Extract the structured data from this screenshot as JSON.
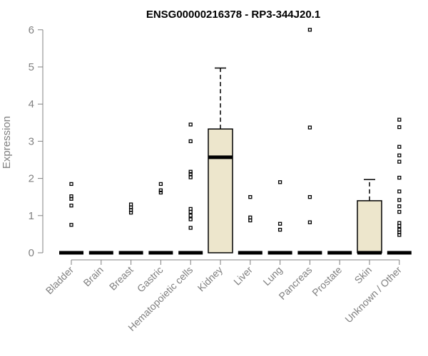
{
  "chart_data": {
    "type": "box",
    "title": "ENSG00000216378 - RP3-344J20.1",
    "ylabel": "Expression",
    "xlabel": "",
    "ylim": [
      0,
      6
    ],
    "yticks": [
      0,
      1,
      2,
      3,
      4,
      5,
      6
    ],
    "box_fill": "#ede6cc",
    "outline_color": "#000000",
    "categories": [
      "Bladder",
      "Brain",
      "Breast",
      "Gastric",
      "Hematopoietic cells",
      "Kidney",
      "Liver",
      "Lung",
      "Pancreas",
      "Prostate",
      "Skin",
      "Unknown / Other"
    ],
    "boxes": [
      {
        "q1": 0,
        "median": 0,
        "q3": 0,
        "whisker_low": 0,
        "whisker_high": 0,
        "outliers": [
          0.75,
          1.27,
          1.45,
          1.52,
          1.85
        ]
      },
      {
        "q1": 0,
        "median": 0,
        "q3": 0,
        "whisker_low": 0,
        "whisker_high": 0,
        "outliers": []
      },
      {
        "q1": 0,
        "median": 0,
        "q3": 0,
        "whisker_low": 0,
        "whisker_high": 0,
        "outliers": [
          1.08,
          1.15,
          1.22,
          1.3
        ]
      },
      {
        "q1": 0,
        "median": 0,
        "q3": 0,
        "whisker_low": 0,
        "whisker_high": 0,
        "outliers": [
          1.62,
          1.68,
          1.85
        ]
      },
      {
        "q1": 0,
        "median": 0,
        "q3": 0,
        "whisker_low": 0,
        "whisker_high": 0,
        "outliers": [
          0.67,
          0.9,
          1.0,
          1.1,
          1.18,
          2.03,
          2.12,
          2.18,
          3.0,
          3.45
        ]
      },
      {
        "q1": 0,
        "median": 2.57,
        "q3": 3.33,
        "whisker_low": 0,
        "whisker_high": 4.97,
        "outliers": []
      },
      {
        "q1": 0,
        "median": 0,
        "q3": 0,
        "whisker_low": 0,
        "whisker_high": 0,
        "outliers": [
          0.87,
          0.95,
          1.5
        ]
      },
      {
        "q1": 0,
        "median": 0,
        "q3": 0,
        "whisker_low": 0,
        "whisker_high": 0,
        "outliers": [
          0.62,
          0.78,
          1.9
        ]
      },
      {
        "q1": 0,
        "median": 0,
        "q3": 0,
        "whisker_low": 0,
        "whisker_high": 0,
        "outliers": [
          0.82,
          1.5,
          3.37,
          6.0
        ]
      },
      {
        "q1": 0,
        "median": 0,
        "q3": 0,
        "whisker_low": 0,
        "whisker_high": 0,
        "outliers": []
      },
      {
        "q1": 0,
        "median": 0,
        "q3": 1.4,
        "whisker_low": 0,
        "whisker_high": 1.97,
        "outliers": []
      },
      {
        "q1": 0,
        "median": 0,
        "q3": 0,
        "whisker_low": 0,
        "whisker_high": 0,
        "outliers": [
          0.48,
          0.55,
          0.62,
          0.72,
          0.8,
          1.1,
          1.25,
          1.42,
          1.65,
          2.02,
          2.45,
          2.62,
          2.85,
          3.38,
          3.58
        ]
      }
    ]
  }
}
